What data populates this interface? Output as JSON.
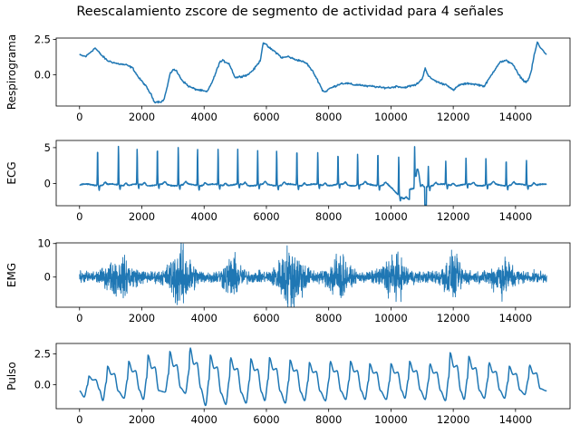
{
  "figure": {
    "title": "Reescalamiento zscore de segmento de actividad para 4 señales"
  },
  "chart_data": [
    {
      "type": "line",
      "ylabel": "Respirograma",
      "color": "#1f77b4",
      "xlim": [
        -750,
        15750
      ],
      "ylim": [
        -2.2,
        2.6
      ],
      "xticks": [
        0,
        2000,
        4000,
        6000,
        8000,
        10000,
        12000,
        14000
      ],
      "yticks": [
        -0.0,
        2.5
      ],
      "yticklabels": [
        "0.0",
        "2.5"
      ],
      "x": [
        0,
        200,
        400,
        500,
        700,
        900,
        1200,
        1500,
        1700,
        1900,
        2100,
        2300,
        2400,
        2600,
        2700,
        2800,
        2900,
        3000,
        3100,
        3300,
        3500,
        3700,
        3900,
        4100,
        4300,
        4500,
        4600,
        4800,
        5000,
        5200,
        5400,
        5600,
        5800,
        5900,
        6000,
        6100,
        6300,
        6500,
        6700,
        6900,
        7100,
        7300,
        7500,
        7700,
        7800,
        7900,
        8000,
        8200,
        8400,
        8600,
        8800,
        9000,
        9200,
        9400,
        9700,
        10000,
        10200,
        10400,
        10600,
        10800,
        11000,
        11100,
        11200,
        11400,
        11600,
        11800,
        12000,
        12200,
        12500,
        12800,
        13000,
        13200,
        13400,
        13500,
        13700,
        13900,
        14100,
        14300,
        14400,
        14500,
        14600,
        14700,
        14800,
        14900,
        15000
      ],
      "y": [
        1.4,
        1.3,
        1.7,
        1.9,
        1.4,
        1.0,
        0.8,
        0.7,
        0.5,
        -0.2,
        -0.7,
        -1.4,
        -1.9,
        -1.9,
        -1.8,
        -1.0,
        0.0,
        0.4,
        0.3,
        -0.4,
        -0.8,
        -1.0,
        -1.1,
        -1.2,
        -0.3,
        0.9,
        1.0,
        0.8,
        -0.2,
        -0.1,
        0.0,
        0.4,
        1.0,
        2.3,
        2.1,
        1.9,
        1.6,
        1.2,
        1.3,
        1.1,
        1.0,
        0.8,
        0.2,
        -0.6,
        -1.1,
        -1.2,
        -1.0,
        -0.8,
        -0.6,
        -0.6,
        -0.7,
        -0.7,
        -0.8,
        -0.8,
        -0.9,
        -0.9,
        -0.8,
        -0.9,
        -0.8,
        -0.7,
        -0.3,
        0.5,
        -0.1,
        -0.4,
        -0.6,
        -0.7,
        -1.1,
        -0.7,
        -0.6,
        -0.7,
        -0.8,
        -0.1,
        0.6,
        0.9,
        1.0,
        0.8,
        0.0,
        -0.5,
        -0.4,
        0.2,
        1.4,
        2.3,
        1.9,
        1.7,
        1.4
      ]
    },
    {
      "type": "line",
      "ylabel": "ECG",
      "color": "#1f77b4",
      "xlim": [
        -750,
        15750
      ],
      "ylim": [
        -3.1,
        6.0
      ],
      "xticks": [
        0,
        2000,
        4000,
        6000,
        8000,
        10000,
        12000,
        14000
      ],
      "yticks": [
        0,
        5
      ],
      "yticklabels": [
        "0",
        "5"
      ],
      "signal": "ecg",
      "beats": [
        580,
        1250,
        1850,
        2500,
        3170,
        3790,
        4450,
        5080,
        5720,
        6330,
        6980,
        7650,
        8300,
        8930,
        9580,
        10250,
        10760,
        11200,
        11760,
        12410,
        13050,
        13700,
        14350
      ],
      "peaks": [
        5.3,
        5.5,
        5.0,
        5.3,
        5.5,
        5.2,
        5.0,
        4.8,
        4.8,
        5.0,
        5.1,
        4.6,
        4.4,
        4.4,
        4.8,
        5.5,
        5.0,
        2.8,
        3.3,
        3.7,
        3.8,
        3.8,
        3.6
      ]
    },
    {
      "type": "line",
      "ylabel": "EMG",
      "color": "#1f77b4",
      "xlim": [
        -750,
        15750
      ],
      "ylim": [
        -9.0,
        10.2
      ],
      "xticks": [
        0,
        2000,
        4000,
        6000,
        8000,
        10000,
        12000,
        14000
      ],
      "yticks": [
        0,
        10
      ],
      "yticklabels": [
        "0",
        "10"
      ],
      "signal": "emg",
      "bursts": [
        {
          "center": 1300,
          "width": 450,
          "amp": 4.0
        },
        {
          "center": 3250,
          "width": 380,
          "amp": 7.0
        },
        {
          "center": 4900,
          "width": 300,
          "amp": 4.5
        },
        {
          "center": 6800,
          "width": 420,
          "amp": 7.5
        },
        {
          "center": 8300,
          "width": 300,
          "amp": 6.0
        },
        {
          "center": 10100,
          "width": 380,
          "amp": 5.0
        },
        {
          "center": 11950,
          "width": 340,
          "amp": 4.5
        },
        {
          "center": 13600,
          "width": 360,
          "amp": 4.0
        }
      ],
      "baseline_amp": 1.5
    },
    {
      "type": "line",
      "ylabel": "Pulso",
      "color": "#1f77b4",
      "xlim": [
        -750,
        15750
      ],
      "ylim": [
        -1.95,
        3.35
      ],
      "xticks": [
        0,
        2000,
        4000,
        6000,
        8000,
        10000,
        12000,
        14000
      ],
      "yticks": [
        -0.0,
        2.5
      ],
      "yticklabels": [
        "0.0",
        "2.5"
      ],
      "signal": "pulse",
      "beats": [
        300,
        900,
        1580,
        2200,
        2900,
        3550,
        4200,
        4850,
        5500,
        6100,
        6760,
        7380,
        8050,
        8700,
        9320,
        10000,
        10600,
        11250,
        11900,
        12500,
        13150,
        13800,
        14450
      ],
      "peaks": [
        0.7,
        1.5,
        1.9,
        2.4,
        2.7,
        3.0,
        2.4,
        2.2,
        2.1,
        2.2,
        2.0,
        1.8,
        1.9,
        1.9,
        1.7,
        1.7,
        1.9,
        1.7,
        2.6,
        2.3,
        1.8,
        1.5,
        1.6
      ],
      "troughs": [
        -1.0,
        -1.3,
        -1.1,
        -1.2,
        -0.6,
        -0.7,
        -1.7,
        -1.6,
        -1.5,
        -1.3,
        -1.5,
        -1.3,
        -1.3,
        -1.2,
        -1.2,
        -1.2,
        -1.1,
        -1.2,
        -1.3,
        -1.2,
        -1.1,
        -1.1,
        -0.8
      ],
      "start": -0.5,
      "end": -0.5
    }
  ]
}
